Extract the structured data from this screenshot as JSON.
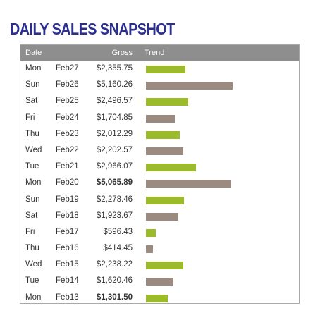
{
  "title": "DAILY SALES SNAPSHOT",
  "headers": {
    "date": "Date",
    "gross": "Gross",
    "trend": "Trend"
  },
  "colors": {
    "green": "#9bbb2a",
    "taupe": "#9a8a80",
    "header": "#8e8e8e",
    "title": "#2b2f8f"
  },
  "chart_data": {
    "type": "bar",
    "categories": [
      "Mon Feb27",
      "Sun Feb26",
      "Sat Feb25",
      "Fri Feb24",
      "Thu Feb23",
      "Wed Feb22",
      "Tue Feb21",
      "Mon Feb20",
      "Sun Feb19",
      "Sat Feb18",
      "Fri Feb17",
      "Thu Feb16",
      "Wed Feb15",
      "Tue Feb14",
      "Mon Feb13"
    ],
    "values": [
      2355.75,
      5160.26,
      2496.57,
      1704.85,
      2012.29,
      2202.57,
      2966.07,
      5065.89,
      2278.46,
      1923.67,
      596.43,
      414.45,
      2238.22,
      1620.46,
      1301.5
    ]
  },
  "rows": [
    {
      "day": "Mon",
      "date": "Feb27",
      "gross": "$2,355.75",
      "value": 2355.75,
      "color": "green",
      "bold": false
    },
    {
      "day": "Sun",
      "date": "Feb26",
      "gross": "$5,160.26",
      "value": 5160.26,
      "color": "taupe",
      "bold": false
    },
    {
      "day": "Sat",
      "date": "Feb25",
      "gross": "$2,496.57",
      "value": 2496.57,
      "color": "green",
      "bold": false
    },
    {
      "day": "Fri",
      "date": "Feb24",
      "gross": "$1,704.85",
      "value": 1704.85,
      "color": "taupe",
      "bold": false
    },
    {
      "day": "Thu",
      "date": "Feb23",
      "gross": "$2,012.29",
      "value": 2012.29,
      "color": "green",
      "bold": false
    },
    {
      "day": "Wed",
      "date": "Feb22",
      "gross": "$2,202.57",
      "value": 2202.57,
      "color": "taupe",
      "bold": false
    },
    {
      "day": "Tue",
      "date": "Feb21",
      "gross": "$2,966.07",
      "value": 2966.07,
      "color": "green",
      "bold": false
    },
    {
      "day": "Mon",
      "date": "Feb20",
      "gross": "$5,065.89",
      "value": 5065.89,
      "color": "taupe",
      "bold": true
    },
    {
      "day": "Sun",
      "date": "Feb19",
      "gross": "$2,278.46",
      "value": 2278.46,
      "color": "green",
      "bold": false
    },
    {
      "day": "Sat",
      "date": "Feb18",
      "gross": "$1,923.67",
      "value": 1923.67,
      "color": "taupe",
      "bold": false
    },
    {
      "day": "Fri",
      "date": "Feb17",
      "gross": "$596.43",
      "value": 596.43,
      "color": "green",
      "bold": false
    },
    {
      "day": "Thu",
      "date": "Feb16",
      "gross": "$414.45",
      "value": 414.45,
      "color": "taupe",
      "bold": false
    },
    {
      "day": "Wed",
      "date": "Feb15",
      "gross": "$2,238.22",
      "value": 2238.22,
      "color": "green",
      "bold": false
    },
    {
      "day": "Tue",
      "date": "Feb14",
      "gross": "$1,620.46",
      "value": 1620.46,
      "color": "taupe",
      "bold": false
    },
    {
      "day": "Mon",
      "date": "Feb13",
      "gross": "$1,301.50",
      "value": 1301.5,
      "color": "green",
      "bold": true
    }
  ]
}
